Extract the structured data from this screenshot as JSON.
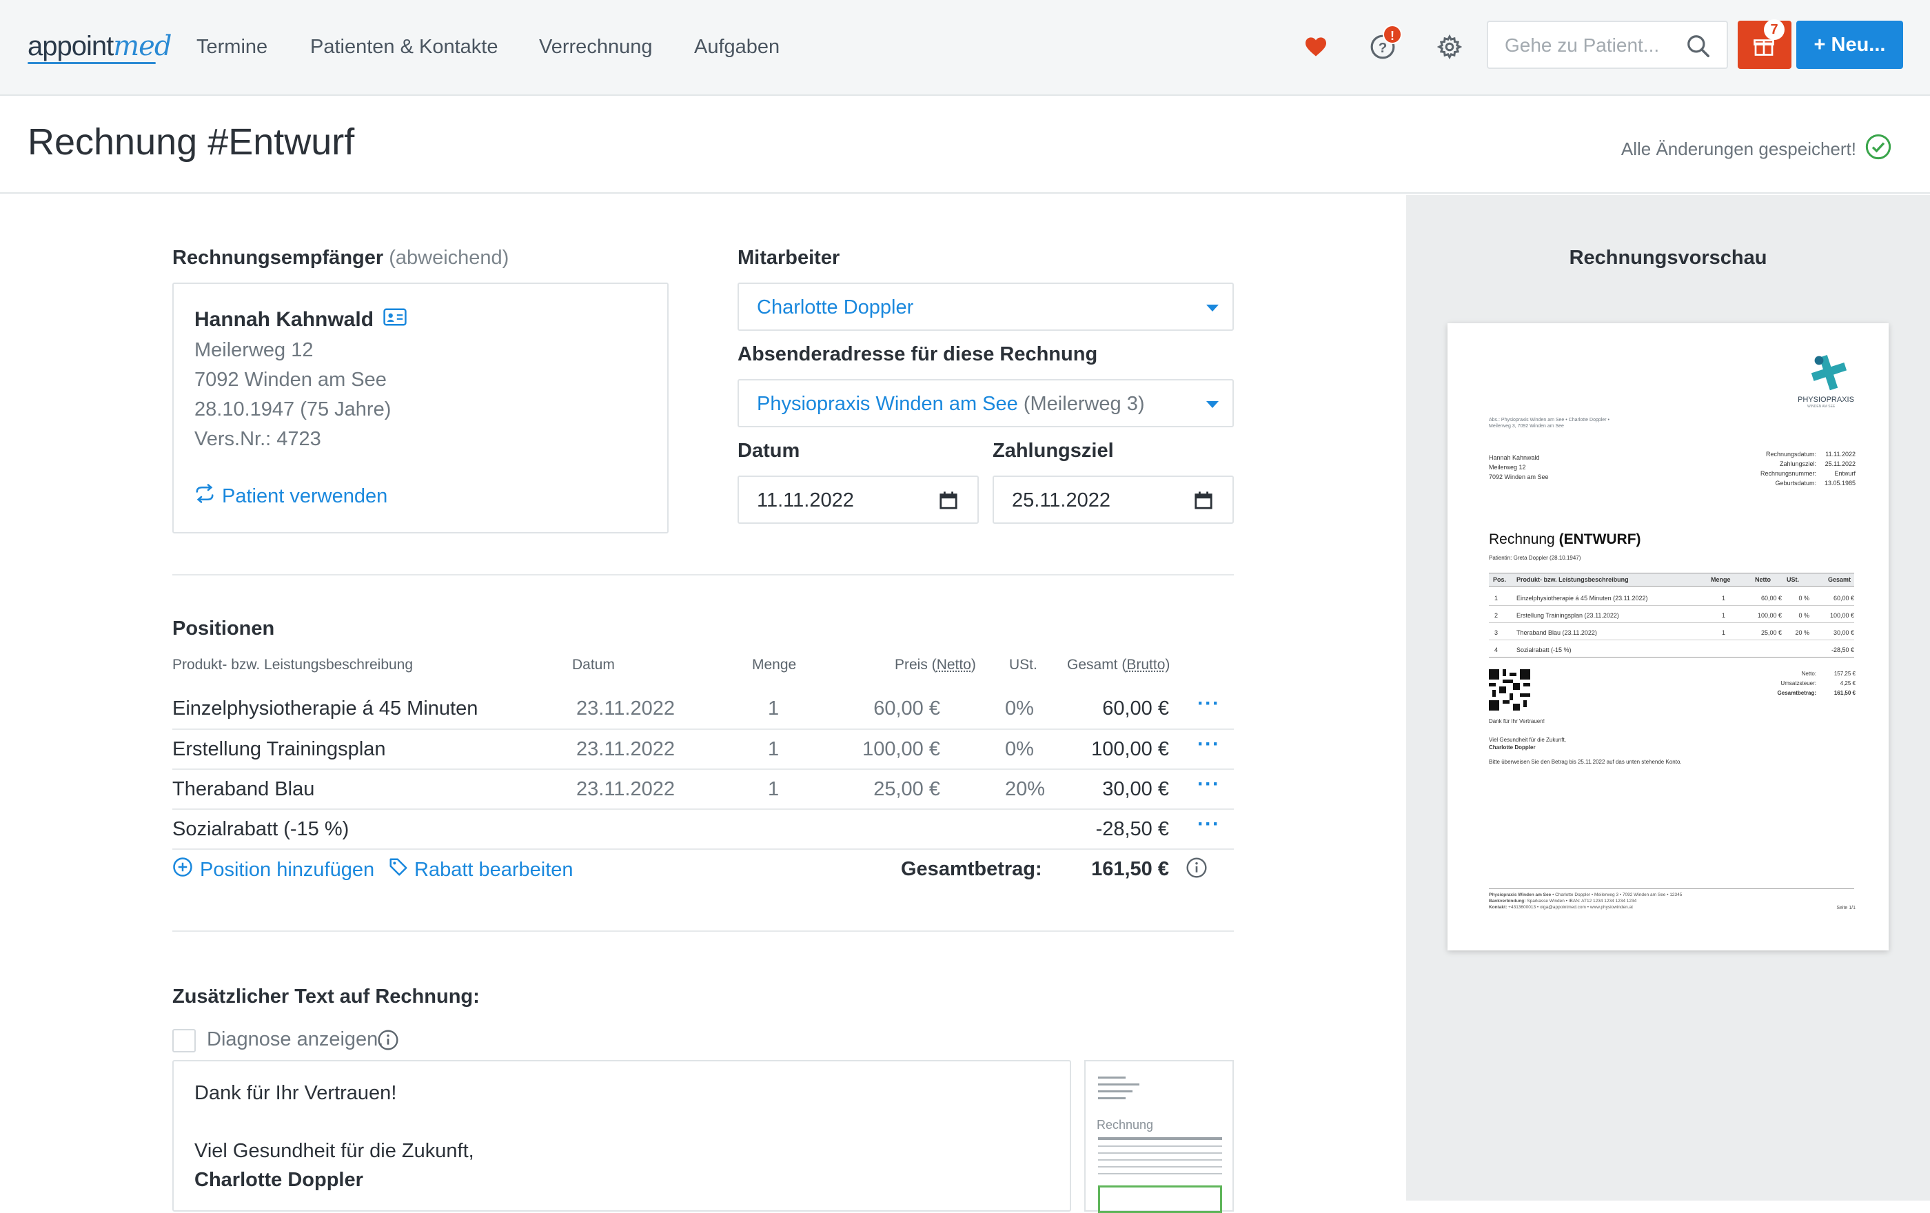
{
  "nav": {
    "logo_a": "appoint",
    "logo_b": "med",
    "items": [
      "Termine",
      "Patienten & Kontakte",
      "Verrechnung",
      "Aufgaben"
    ],
    "help_badge": "!",
    "gift_badge": "7",
    "search_placeholder": "Gehe zu Patient...",
    "new_button": "+ Neu...",
    "icons": [
      "heart-icon",
      "help-icon",
      "gear-icon",
      "search-icon",
      "gift-icon"
    ]
  },
  "header": {
    "title": "Rechnung #Entwurf",
    "saved_status": "Alle Änderungen gespeichert!"
  },
  "recipient": {
    "label": "Rechnungsempfänger",
    "label_muted": "(abweichend)",
    "name": "Hannah Kahnwald",
    "street": "Meilerweg 12",
    "city": "7092 Winden am See",
    "birth": "28.10.1947 (75 Jahre)",
    "insurance": "Vers.Nr.: 4723",
    "use_patient": "Patient verwenden"
  },
  "employee": {
    "label": "Mitarbeiter",
    "value": "Charlotte Doppler"
  },
  "sender": {
    "label": "Absenderadresse für diese Rechnung",
    "value": "Physiopraxis Winden am See",
    "value_muted": "(Meilerweg 3)"
  },
  "dates": {
    "date_label": "Datum",
    "date_value": "11.11.2022",
    "due_label": "Zahlungsziel",
    "due_value": "25.11.2022"
  },
  "positions": {
    "title": "Positionen",
    "headers": {
      "desc": "Produkt- bzw. Leistungsbeschreibung",
      "date": "Datum",
      "qty": "Menge",
      "price_a": "Preis (",
      "price_b": "Netto",
      "price_c": ")",
      "vat": "USt.",
      "total_a": "Gesamt (",
      "total_b": "Brutto",
      "total_c": ")"
    },
    "rows": [
      {
        "desc": "Einzelphysiotherapie á 45 Minuten",
        "date": "23.11.2022",
        "qty": "1",
        "price": "60,00 €",
        "vat": "0%",
        "total": "60,00 €"
      },
      {
        "desc": "Erstellung Trainingsplan",
        "date": "23.11.2022",
        "qty": "1",
        "price": "100,00 €",
        "vat": "0%",
        "total": "100,00 €"
      },
      {
        "desc": "Theraband Blau",
        "date": "23.11.2022",
        "qty": "1",
        "price": "25,00 €",
        "vat": "20%",
        "total": "30,00 €"
      },
      {
        "desc": "Sozialrabatt (-15 %)",
        "date": "",
        "qty": "",
        "price": "",
        "vat": "",
        "total": "-28,50 €"
      }
    ],
    "add_position": "Position hinzufügen",
    "edit_discount": "Rabatt bearbeiten",
    "total_label": "Gesamtbetrag:",
    "total_value": "161,50 €"
  },
  "extra": {
    "title": "Zusätzlicher Text auf Rechnung:",
    "diagnose": "Diagnose anzeigen.",
    "line1": "Dank für Ihr Vertrauen!",
    "line2": "Viel Gesundheit für die Zukunft,",
    "line3": "Charlotte Doppler",
    "thumb_label": "Rechnung"
  },
  "preview": {
    "title": "Rechnungsvorschau",
    "brand": "PHYSIOPRAXIS",
    "brand_sub": "WINDEN AM SEE",
    "sender_line1": "Abs.: Physiopraxis Winden am See • Charlotte Doppler •",
    "sender_line2": "Meilerweg 3, 7092 Winden am See",
    "addr": [
      "Hannah Kahnwald",
      "Meilerweg 12",
      "7092 Winden am See"
    ],
    "meta_labels": [
      "Rechnungsdatum:",
      "Zahlungsziel:",
      "Rechnungsnummer:",
      "Geburtsdatum:"
    ],
    "meta_values": [
      "11.11.2022",
      "25.11.2022",
      "Entwurf",
      "13.05.1985"
    ],
    "heading_a": "Rechnung ",
    "heading_b": "(ENTWURF)",
    "patient": "Patientin: Greta Doppler (28.10.1947)",
    "th": [
      "Pos.",
      "Produkt- bzw. Leistungsbeschreibung",
      "Menge",
      "Netto",
      "USt.",
      "Gesamt"
    ],
    "rows": [
      [
        "1",
        "Einzelphysiotherapie á 45 Minuten (23.11.2022)",
        "1",
        "60,00 €",
        "0 %",
        "60,00 €"
      ],
      [
        "2",
        "Erstellung Trainingsplan (23.11.2022)",
        "1",
        "100,00 €",
        "0 %",
        "100,00 €"
      ],
      [
        "3",
        "Theraband Blau (23.11.2022)",
        "1",
        "25,00 €",
        "20 %",
        "30,00 €"
      ],
      [
        "4",
        "Sozialrabatt (-15 %)",
        "",
        "",
        "",
        "-28,50 €"
      ]
    ],
    "sum_labels": [
      "Netto:",
      "Umsatzsteuer:",
      "Gesamtbetrag:"
    ],
    "sum_values": [
      "157,25 €",
      "4,25 €",
      "161,50 €"
    ],
    "thanks": "Dank für Ihr Vertrauen!",
    "wish": "Viel Gesundheit für die Zukunft,",
    "signer": "Charlotte Doppler",
    "transfer": "Bitte überweisen Sie den Betrag bis 25.11.2022 auf das unten stehende Konto.",
    "footer_a": "Physiopraxis Winden am See",
    "footer_a_rest": " • Charlotte Doppler • Meilerweg 3 • 7092 Winden am See • 12345",
    "footer_b": "Bankverbindung:",
    "footer_b_rest": " Sparkasse Winden • IBAN: AT12 1234 1234 1234 1234",
    "footer_c": "Kontakt:",
    "footer_c_rest": " +4313600013 • olga@appointmed.com • www.physiowinden.at",
    "page": "Seite 1/1"
  },
  "colors": {
    "accent": "#1a88dd",
    "danger": "#e0441f",
    "success": "#3aa54b"
  }
}
